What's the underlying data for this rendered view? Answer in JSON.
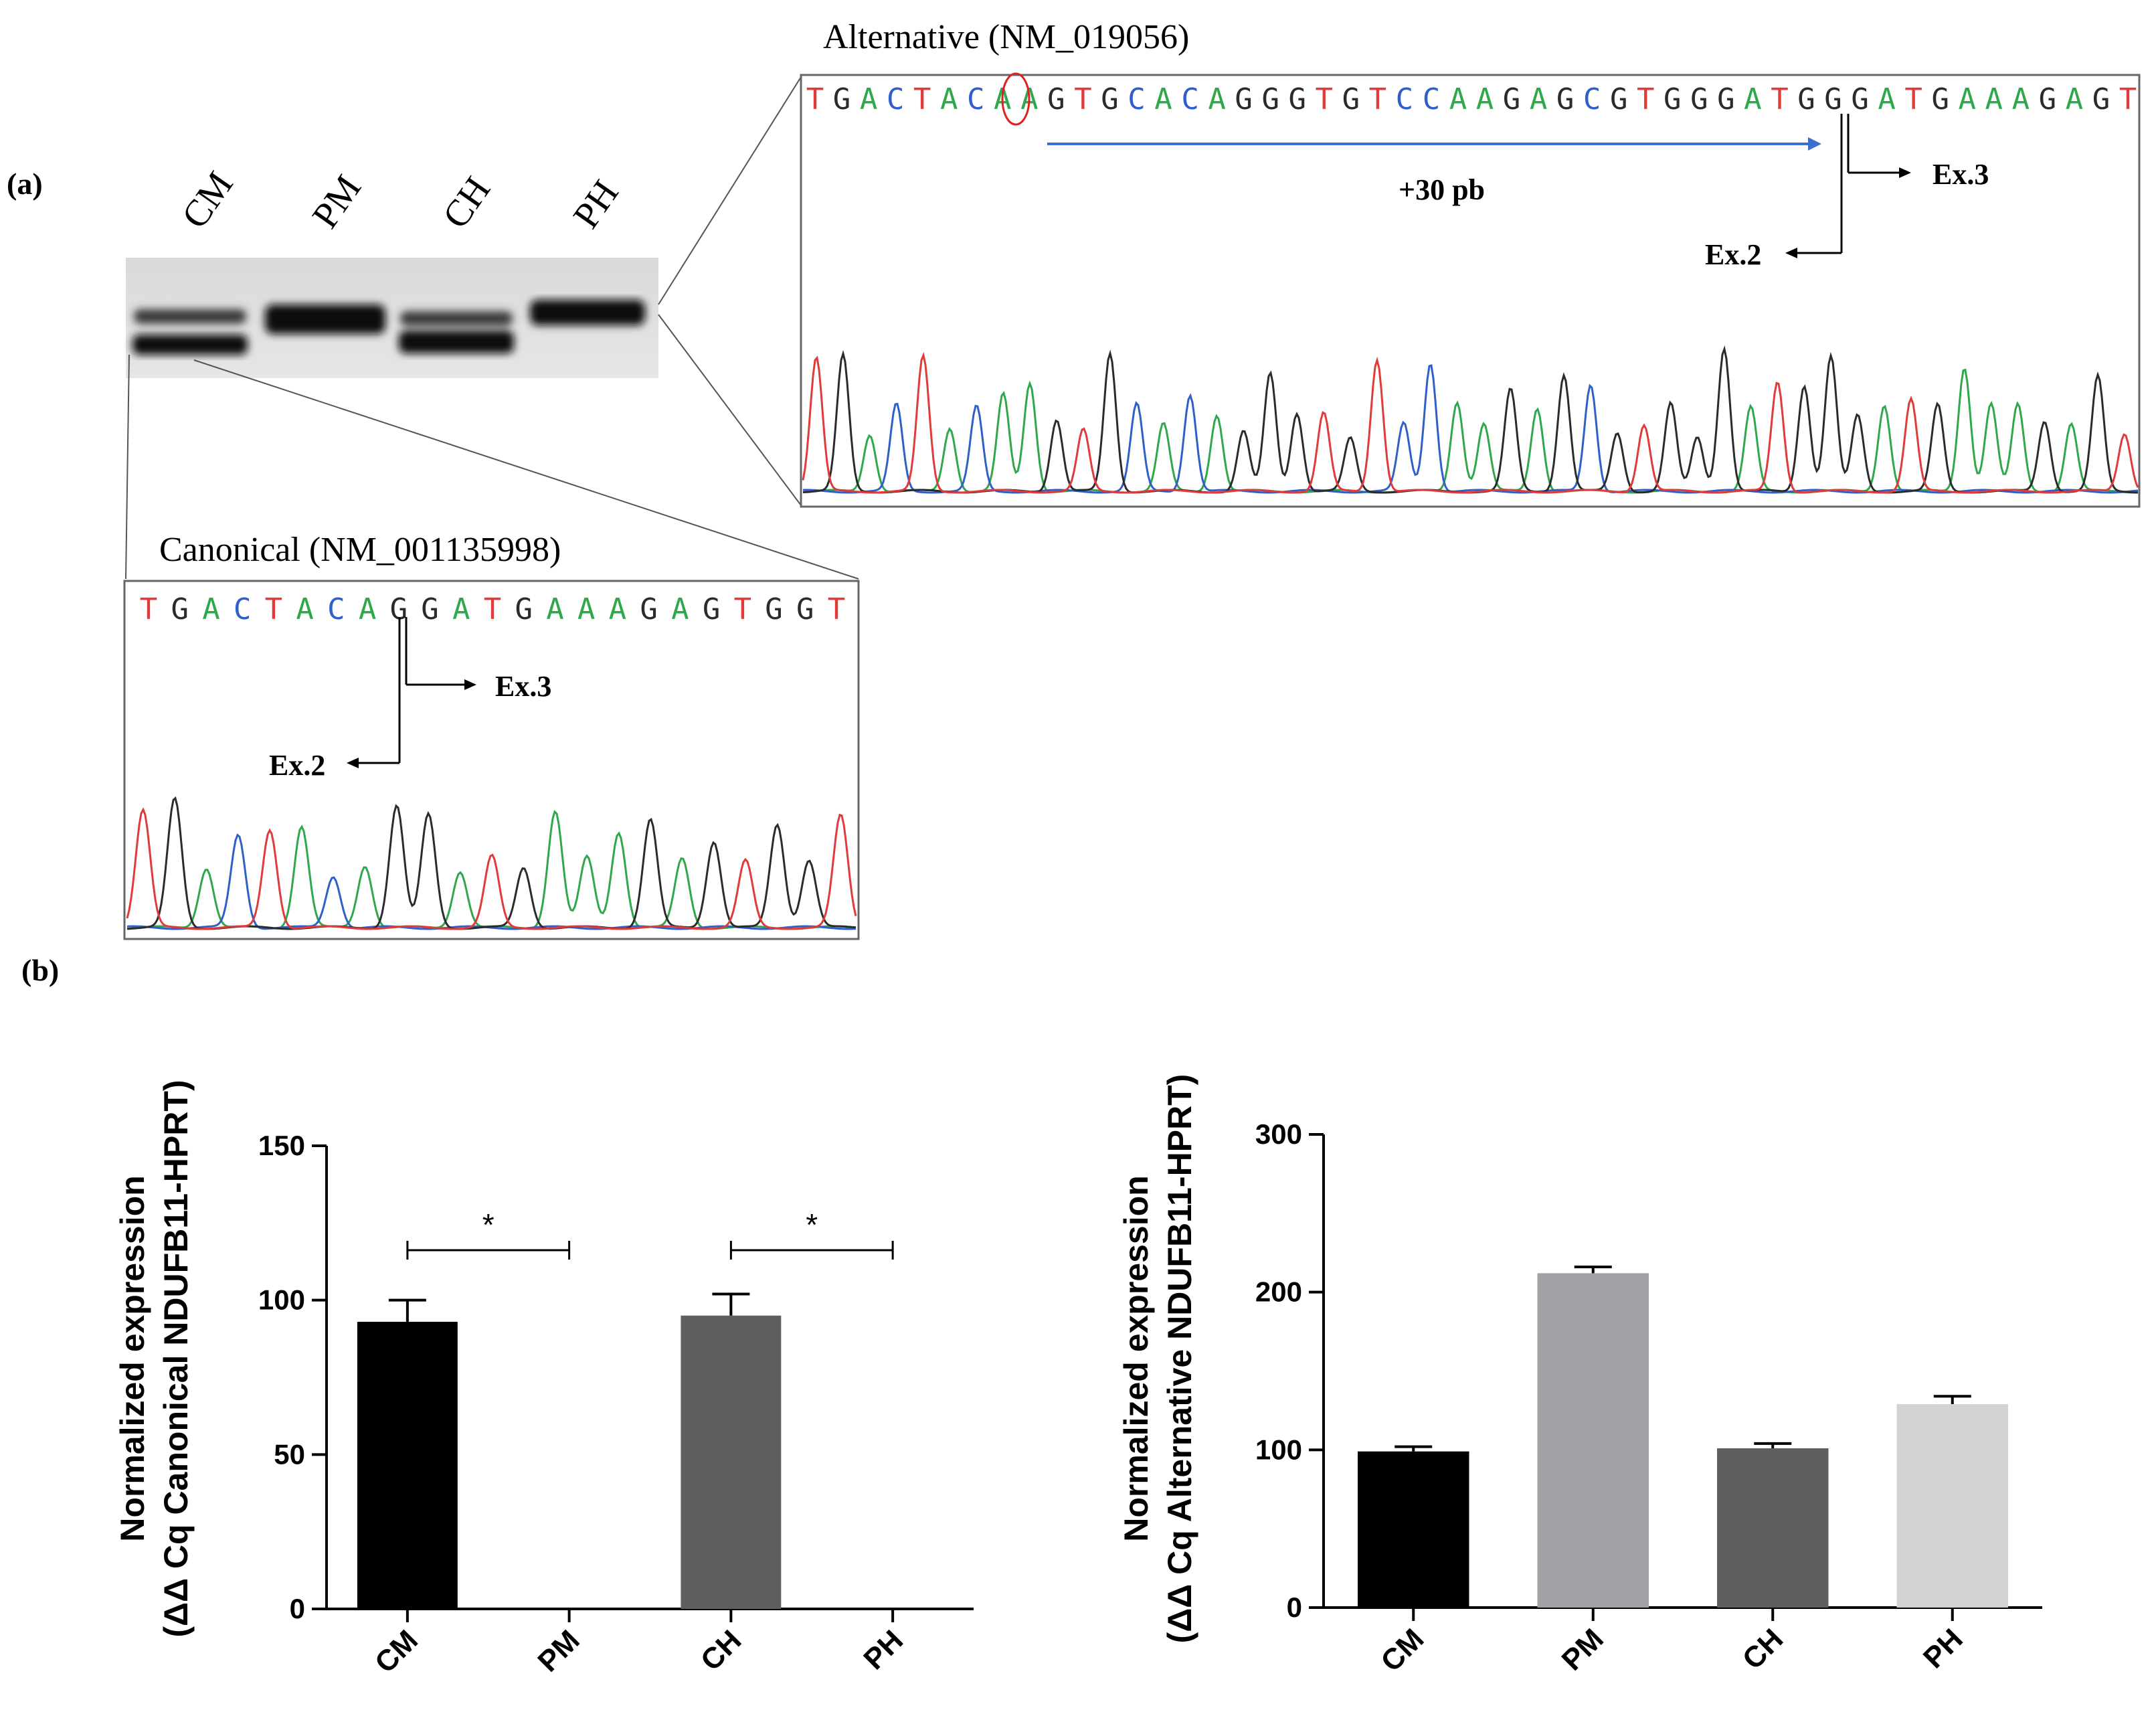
{
  "panel_labels": {
    "a": "(a)",
    "b": "(b)"
  },
  "gel": {
    "lanes": [
      "CM",
      "PM",
      "CH",
      "PH"
    ]
  },
  "alternative": {
    "title": "Alternative (NM_019056)",
    "sequence": "TGACTACAAGTGCACAGGGTGTCCAAGAGCGTGGGATGGGATGAAAGAGT",
    "insertion_label": "+30 pb",
    "exon3_label": "Ex.3",
    "exon2_label": "Ex.2"
  },
  "canonical": {
    "title": "Canonical (NM_001135998)",
    "sequence": "TGACTACAGGATGAAAGAGTGGT",
    "exon3_label": "Ex.3",
    "exon2_label": "Ex.2"
  },
  "colors": {
    "A": "#2ea84a",
    "C": "#2f5fc9",
    "G": "#2b2b2b",
    "T": "#e03a3a",
    "bar_CM": "#000000",
    "bar_PM": "#a2a2a6",
    "bar_CH": "#5f5f5f",
    "bar_PH": "#d3d3d3",
    "arrow_blue": "#3a6fd0"
  },
  "chart_data": [
    {
      "type": "bar",
      "title": "",
      "ylabel_line1": "Normalized expression",
      "ylabel_line2": "(ΔΔ Cq Canonical NDUFB11-HPRT)",
      "categories": [
        "CM",
        "PM",
        "CH",
        "PH"
      ],
      "values": [
        93,
        0,
        95,
        0
      ],
      "errors": [
        7,
        0,
        7,
        0
      ],
      "ylim": [
        0,
        150
      ],
      "yticks": [
        0,
        50,
        100,
        150
      ],
      "significance": [
        {
          "from": "CM",
          "to": "PM",
          "label": "*"
        },
        {
          "from": "CH",
          "to": "PH",
          "label": "*"
        }
      ]
    },
    {
      "type": "bar",
      "title": "",
      "ylabel_line1": "Normalized expression",
      "ylabel_line2": "(ΔΔ Cq Alternative NDUFB11-HPRT)",
      "categories": [
        "CM",
        "PM",
        "CH",
        "PH"
      ],
      "values": [
        99,
        212,
        101,
        129
      ],
      "errors": [
        3,
        4,
        3,
        5
      ],
      "ylim": [
        0,
        300
      ],
      "yticks": [
        0,
        100,
        200,
        300
      ],
      "significance": []
    }
  ]
}
